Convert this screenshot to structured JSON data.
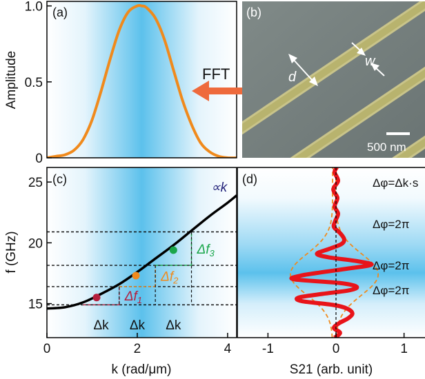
{
  "figure": {
    "panel_labels": [
      "(a)",
      "(b)",
      "(c)",
      "(d)"
    ],
    "fft_label": "FFT",
    "micrograph": {
      "label_d": "d",
      "label_w": "w",
      "scale_bar": "500 nm"
    }
  },
  "colors": {
    "orange": "#f08a1c",
    "arrow": "#ee6a3c",
    "blue": "#38b2e6",
    "red": "#e8141a",
    "black": "#000000",
    "green": "#1aa64a",
    "crimson": "#b41e3c",
    "navy": "#23237a"
  },
  "chart_data": [
    {
      "id": "a",
      "type": "line",
      "ylabel": "Amplitude",
      "xlim": [
        0,
        4.2
      ],
      "ylim": [
        0,
        1.03
      ],
      "yticks": [
        0,
        0.5,
        1.0
      ],
      "ytick_labels": [
        "0",
        "0.5",
        "1.0"
      ],
      "series": [
        {
          "x": [
            0,
            0.2,
            0.4,
            0.6,
            0.8,
            1.0,
            1.2,
            1.4,
            1.6,
            1.8,
            2.0,
            2.1,
            2.2,
            2.4,
            2.6,
            2.8,
            3.0,
            3.2,
            3.4,
            3.6,
            3.8,
            4.0,
            4.2
          ],
          "y": [
            0.0,
            0.01,
            0.02,
            0.05,
            0.12,
            0.25,
            0.44,
            0.65,
            0.84,
            0.96,
            1.0,
            1.0,
            0.99,
            0.92,
            0.78,
            0.58,
            0.38,
            0.22,
            0.1,
            0.04,
            0.01,
            0.0,
            0.0
          ]
        }
      ]
    },
    {
      "id": "c",
      "type": "line",
      "xlabel": "k (rad/μm)",
      "ylabel": "f (GHz)",
      "xlim": [
        0,
        4.2
      ],
      "ylim": [
        12.2,
        26.2
      ],
      "xticks": [
        0,
        2,
        4
      ],
      "xtick_labels": [
        "0",
        "2",
        "4"
      ],
      "yticks": [
        15,
        20,
        25
      ],
      "ytick_labels": [
        "15",
        "20",
        "25"
      ],
      "annotation_proportional": "∝k",
      "annotation_delta_k": "Δk",
      "delta_f_labels": [
        "Δf1",
        "Δf2",
        "Δf3"
      ],
      "series": [
        {
          "x": [
            0,
            0.4,
            0.8,
            1.2,
            1.6,
            2.0,
            2.4,
            2.8,
            3.2,
            3.6,
            4.0,
            4.2
          ],
          "y": [
            14.6,
            14.7,
            15.1,
            15.8,
            16.6,
            17.6,
            18.7,
            19.8,
            21.0,
            22.2,
            23.3,
            23.9
          ]
        }
      ],
      "points": [
        {
          "k": 1.1,
          "f": 15.5,
          "color": "#b41e3c"
        },
        {
          "k": 1.97,
          "f": 17.3,
          "color": "#f08a1c"
        },
        {
          "k": 2.8,
          "f": 19.4,
          "color": "#1aa64a"
        }
      ],
      "hlines": [
        14.9,
        16.4,
        18.15,
        20.9
      ],
      "delta_k_edges": [
        0.8,
        1.6,
        2.4,
        3.2
      ]
    },
    {
      "id": "d",
      "type": "line",
      "xlabel": "S21 (arb. unit)",
      "xlim": [
        -1.45,
        1.45
      ],
      "ylim": [
        12.2,
        26.2
      ],
      "xticks": [
        -1,
        0,
        1
      ],
      "xtick_labels": [
        "-1",
        "0",
        "1"
      ],
      "phase_labels": [
        "Δφ=Δk·s",
        "Δφ=2π",
        "Δφ=2π",
        "Δφ=2π"
      ],
      "series": [
        {
          "name": "S21",
          "y": [
            12.2,
            12.6,
            13.0,
            13.4,
            13.8,
            14.2,
            14.6,
            14.9,
            15.2,
            15.5,
            15.8,
            16.1,
            16.4,
            16.7,
            17.0,
            17.3,
            17.6,
            17.9,
            18.2,
            18.5,
            18.8,
            19.1,
            19.5,
            19.9,
            20.3,
            20.8,
            21.3,
            21.8,
            22.4,
            23.0,
            23.7,
            24.4,
            25.1,
            25.8,
            26.2
          ],
          "x": [
            -0.02,
            0.06,
            -0.03,
            0.05,
            0.18,
            0.24,
            0.16,
            -0.05,
            -0.5,
            -0.55,
            -0.2,
            0.2,
            0.3,
            0.05,
            -0.62,
            -0.52,
            -0.18,
            0.2,
            0.52,
            0.3,
            -0.1,
            -0.28,
            -0.1,
            0.08,
            0.12,
            0.06,
            -0.03,
            -0.01,
            0.03,
            -0.02,
            0.02,
            -0.04,
            0.03,
            -0.02,
            0.01
          ]
        }
      ]
    }
  ]
}
